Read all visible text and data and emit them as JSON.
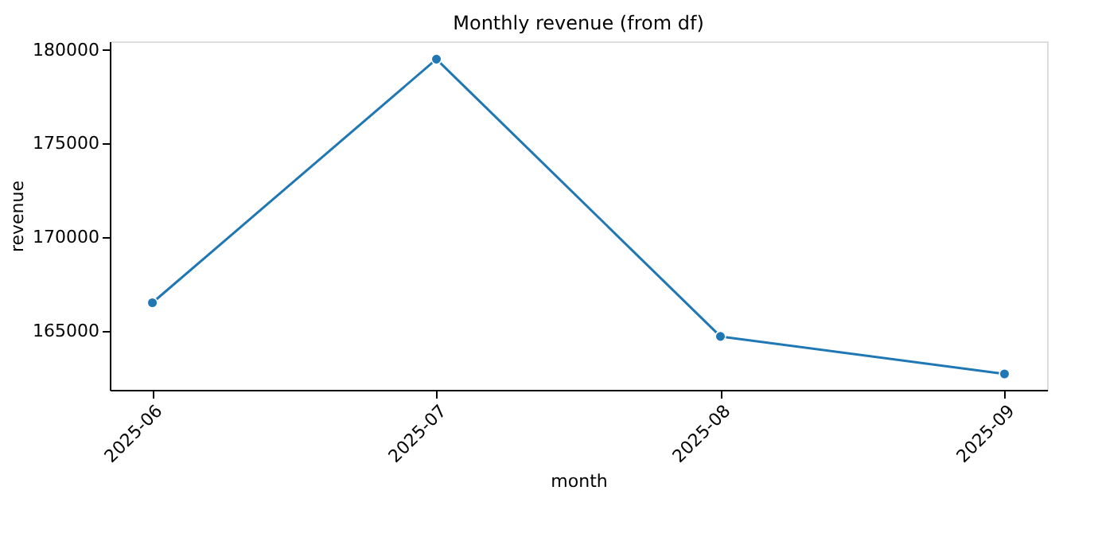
{
  "chart_data": {
    "type": "line",
    "title": "Monthly revenue (from df)",
    "xlabel": "month",
    "ylabel": "revenue",
    "categories": [
      "2025-06",
      "2025-07",
      "2025-08",
      "2025-09"
    ],
    "series": [
      {
        "color": "#1f77b4",
        "values": [
          166500,
          179500,
          164700,
          162700
        ]
      }
    ],
    "ylim": [
      161850,
      180450
    ],
    "yticks": [
      165000,
      170000,
      175000,
      180000
    ],
    "marker": "circle",
    "line_style": "solid",
    "grid": false
  }
}
